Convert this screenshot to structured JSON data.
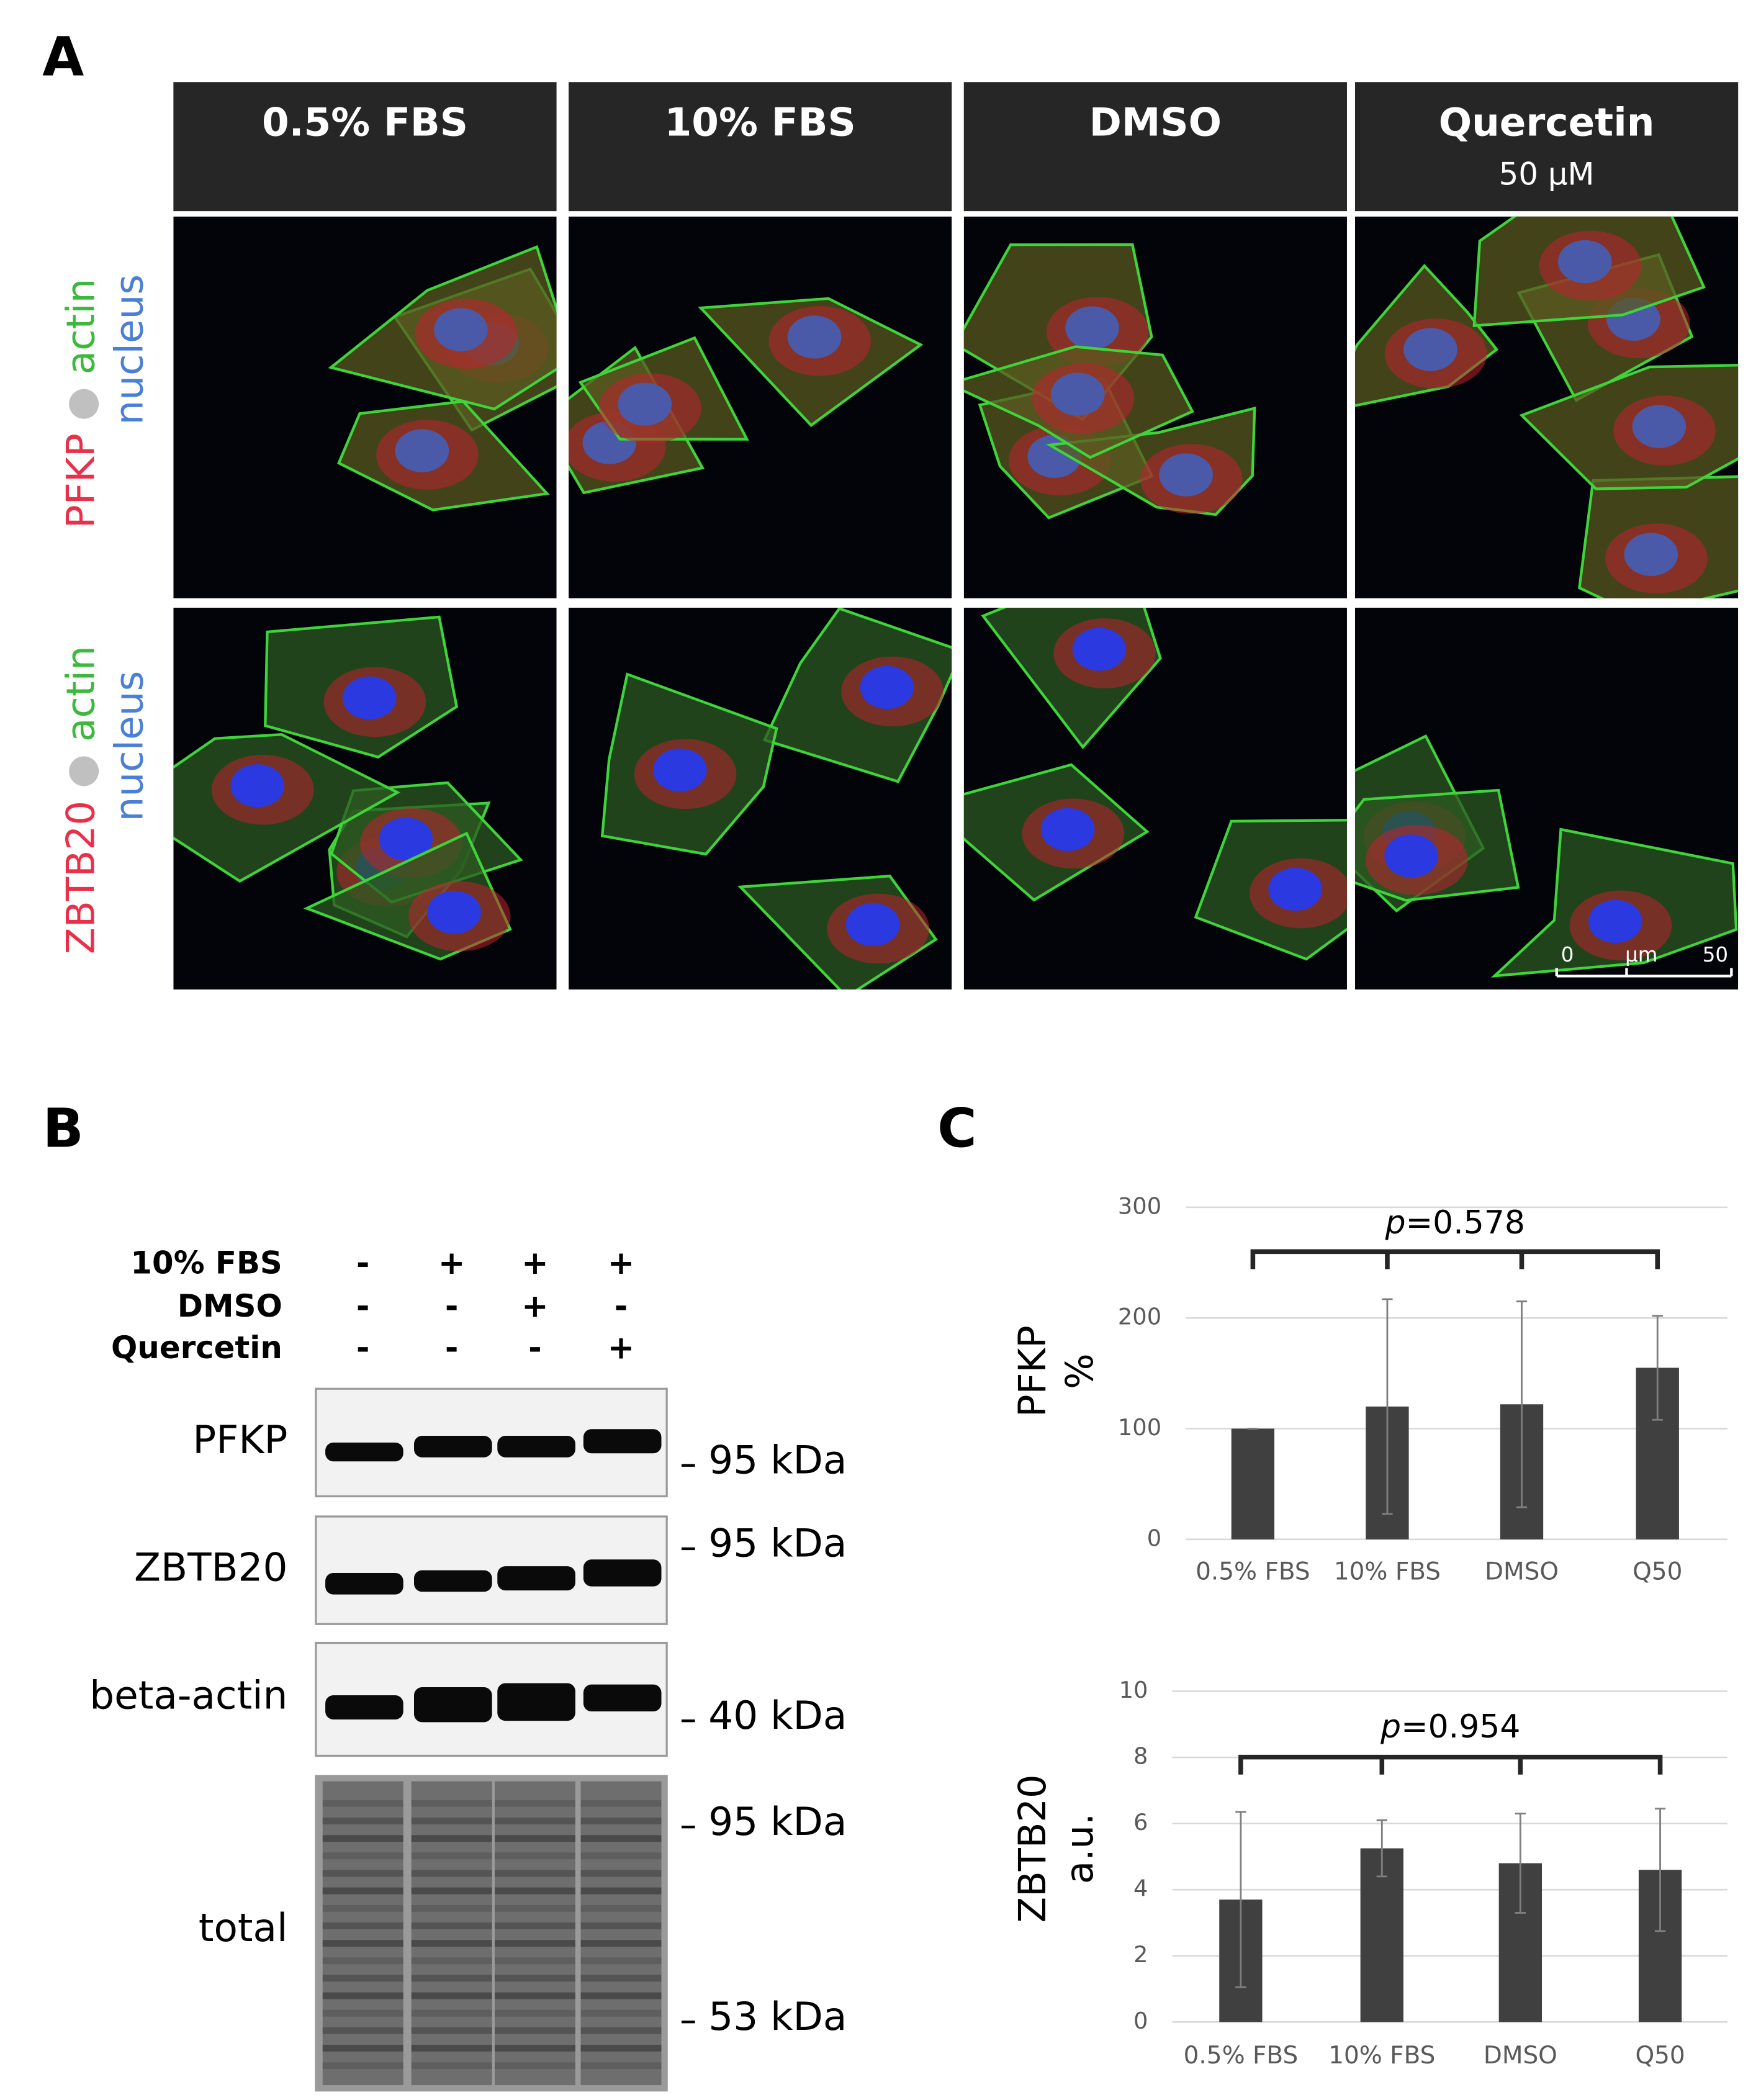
{
  "panels": {
    "a": "A",
    "b": "B",
    "c": "C"
  },
  "microscopy": {
    "columns": [
      {
        "label": "0.5% FBS"
      },
      {
        "label": "10% FBS"
      },
      {
        "label": "DMSO"
      },
      {
        "label": "Quercetin",
        "sublabel": "50 μM"
      }
    ],
    "rows": [
      {
        "marker": "PFKP",
        "actin": "actin",
        "nucleus": "nucleus"
      },
      {
        "marker": "ZBTB20",
        "actin": "actin",
        "nucleus": "nucleus"
      }
    ],
    "scale_bar": {
      "start": "0",
      "unit": "μm",
      "end": "50"
    }
  },
  "western_blot": {
    "conditions": [
      {
        "label": "10% FBS",
        "signs": [
          "-",
          "+",
          "+",
          "+"
        ]
      },
      {
        "label": "DMSO",
        "signs": [
          "-",
          "-",
          "+",
          "-"
        ]
      },
      {
        "label": "Quercetin",
        "signs": [
          "-",
          "-",
          "-",
          "+"
        ]
      }
    ],
    "bands": [
      {
        "label": "PFKP",
        "markers": [
          "95 kDa"
        ]
      },
      {
        "label": "ZBTB20",
        "markers": [
          "95 kDa"
        ]
      },
      {
        "label": "beta-actin",
        "markers": [
          "40 kDa"
        ]
      },
      {
        "label": "total",
        "markers": [
          "95 kDa",
          "53 kDa"
        ]
      }
    ]
  },
  "chart_data": [
    {
      "type": "bar",
      "ylabel": [
        "PFKP",
        "%"
      ],
      "categories": [
        "0.5% FBS",
        "10% FBS",
        "DMSO",
        "Q50"
      ],
      "values": [
        100,
        120,
        122,
        155
      ],
      "errors": [
        0,
        97,
        93,
        47
      ],
      "color": "#404040",
      "ylim": [
        0,
        300
      ],
      "yticks": [
        0,
        100,
        200,
        300
      ],
      "grid": true,
      "annotation": {
        "symbol": "p",
        "text": "=0.578"
      }
    },
    {
      "type": "bar",
      "ylabel": [
        "ZBTB20",
        "a.u."
      ],
      "categories": [
        "0.5% FBS",
        "10% FBS",
        "DMSO",
        "Q50"
      ],
      "values": [
        3.7,
        5.25,
        4.8,
        4.6
      ],
      "errors": [
        2.65,
        0.85,
        1.5,
        1.85
      ],
      "color": "#404040",
      "ylim": [
        0,
        10
      ],
      "yticks": [
        0,
        2,
        4,
        6,
        8,
        10
      ],
      "grid": true,
      "annotation": {
        "symbol": "p",
        "text": "=0.954"
      }
    }
  ]
}
